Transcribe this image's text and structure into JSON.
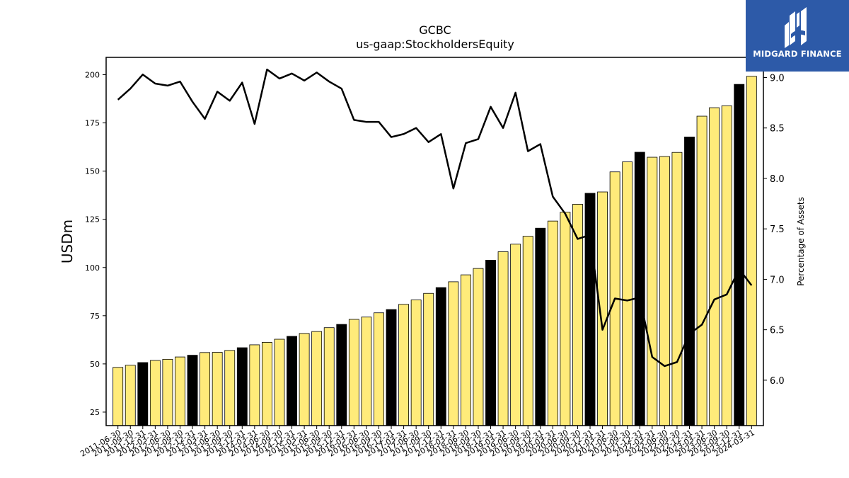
{
  "chart_data": {
    "type": "bar+line",
    "title": "GCBC",
    "subtitle": "us-gaap:StockholdersEquity",
    "ylabel": "USDm",
    "y2label": "Percentage of Assets",
    "ylim": [
      18,
      209
    ],
    "y2lim": [
      5.55,
      9.2
    ],
    "yticks": [
      25,
      50,
      75,
      100,
      125,
      150,
      175,
      200
    ],
    "y2ticks": [
      6.0,
      6.5,
      7.0,
      7.5,
      8.0,
      8.5,
      9.0
    ],
    "y2tick_labels": [
      "6.0",
      "6.5",
      "7.0",
      "7.5",
      "8.0",
      "8.5",
      "9.0"
    ],
    "grid": false,
    "colors": {
      "quarter_bar": "#ffeb7a",
      "year_end_bar": "#000000",
      "line": "#000000"
    },
    "categories": [
      "2011-06-30",
      "2011-09-30",
      "2011-12-31",
      "2012-03-31",
      "2012-06-30",
      "2012-09-30",
      "2012-12-31",
      "2013-03-31",
      "2013-06-30",
      "2013-09-30",
      "2013-12-31",
      "2014-03-31",
      "2014-06-30",
      "2014-09-30",
      "2014-12-31",
      "2015-03-31",
      "2015-06-30",
      "2015-09-30",
      "2015-12-31",
      "2016-03-31",
      "2016-06-30",
      "2016-09-30",
      "2016-12-31",
      "2017-03-31",
      "2017-06-30",
      "2017-09-30",
      "2017-12-31",
      "2018-03-31",
      "2018-06-30",
      "2018-09-30",
      "2018-12-31",
      "2019-03-31",
      "2019-06-30",
      "2019-09-30",
      "2019-12-31",
      "2020-03-31",
      "2020-06-30",
      "2020-09-30",
      "2020-12-31",
      "2021-03-31",
      "2021-06-30",
      "2021-09-30",
      "2021-12-31",
      "2022-03-31",
      "2022-06-30",
      "2022-09-30",
      "2022-12-31",
      "2023-03-31",
      "2023-06-30",
      "2023-09-30",
      "2023-12-31",
      "2024-03-31"
    ],
    "year_end": [
      false,
      false,
      true,
      false,
      false,
      false,
      true,
      false,
      false,
      false,
      true,
      false,
      false,
      false,
      true,
      false,
      false,
      false,
      true,
      false,
      false,
      false,
      true,
      false,
      false,
      false,
      true,
      false,
      false,
      false,
      true,
      false,
      false,
      false,
      true,
      false,
      false,
      false,
      true,
      false,
      false,
      false,
      true,
      false,
      false,
      false,
      true,
      false,
      false,
      false,
      true,
      false
    ],
    "series": [
      {
        "name": "",
        "type": "bar",
        "axis": "left",
        "values": [
          48.2,
          49.3,
          50.7,
          51.8,
          52.4,
          53.6,
          54.5,
          55.9,
          56.0,
          57.0,
          58.4,
          59.9,
          61.2,
          62.8,
          64.3,
          65.8,
          66.8,
          68.8,
          70.5,
          73.1,
          74.3,
          76.5,
          78.2,
          80.9,
          83.2,
          86.6,
          89.6,
          92.6,
          96.2,
          99.5,
          103.8,
          108.2,
          112.1,
          116.2,
          120.4,
          124.1,
          128.7,
          132.8,
          138.5,
          139.2,
          149.6,
          154.8,
          159.8,
          157.2,
          157.6,
          159.7,
          167.7,
          178.5,
          182.9,
          183.9,
          195.0,
          199.2
        ]
      },
      {
        "name": "",
        "type": "line",
        "axis": "right",
        "values": [
          8.78,
          8.89,
          9.03,
          8.94,
          8.92,
          8.96,
          8.76,
          8.59,
          8.86,
          8.77,
          8.95,
          8.54,
          9.08,
          8.99,
          9.04,
          8.97,
          9.05,
          8.96,
          8.89,
          8.58,
          8.56,
          8.56,
          8.41,
          8.44,
          8.5,
          8.36,
          8.44,
          7.9,
          8.35,
          8.39,
          8.71,
          8.5,
          8.85,
          8.27,
          8.34,
          7.82,
          7.65,
          7.4,
          7.44,
          6.5,
          6.81,
          6.79,
          6.82,
          6.23,
          6.14,
          6.18,
          6.46,
          6.55,
          6.8,
          6.85,
          7.1,
          6.94
        ]
      }
    ]
  },
  "logo": {
    "text": "MIDGARD FINANCE"
  }
}
